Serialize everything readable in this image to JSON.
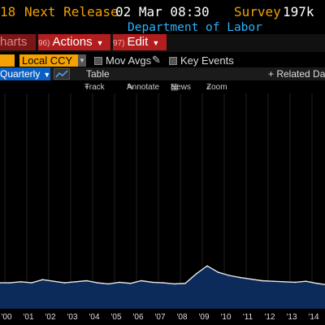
{
  "header": {
    "partial_value": "18",
    "next_release_label": "Next Release",
    "next_release_value": "02 Mar 08:30",
    "survey_label": "Survey",
    "survey_value": "197k",
    "source": "Department of Labor"
  },
  "menu": {
    "partial_tab": "harts",
    "actions": {
      "num": "96)",
      "label": "Actions"
    },
    "edit": {
      "num": "97)",
      "label": "Edit"
    }
  },
  "options": {
    "currency": "Local CCY",
    "mov_avgs": "Mov Avgs",
    "key_events": "Key Events"
  },
  "tabs": {
    "frequency": "Quarterly",
    "table": "Table",
    "related": "+ Related Da"
  },
  "tools": {
    "track": "Track",
    "annotate": "Annotate",
    "news": "News",
    "zoom": "Zoom"
  },
  "colors": {
    "background": "#000000",
    "area_fill": "#0c2a5a",
    "line": "#e8e8e8",
    "accent_red": "#b21d1d",
    "accent_amber": "#f5a200",
    "accent_blue": "#0a5fc4"
  },
  "chart_data": {
    "type": "area",
    "x_tick_labels": [
      "'00",
      "'01",
      "'02",
      "'03",
      "'04",
      "'05",
      "'06",
      "'07",
      "'08",
      "'09",
      "'10",
      "'11",
      "'12",
      "'13",
      "'14"
    ],
    "x": [
      2000,
      2000.5,
      2001,
      2001.5,
      2002,
      2002.5,
      2003,
      2003.5,
      2004,
      2004.5,
      2005,
      2005.5,
      2006,
      2006.5,
      2007,
      2007.5,
      2008,
      2008.5,
      2009,
      2009.5,
      2010,
      2010.5,
      2011,
      2011.5,
      2012,
      2012.5,
      2013,
      2013.5,
      2014,
      2014.5,
      2015
    ],
    "values": [
      0.6,
      0.8,
      0.6,
      1.2,
      0.9,
      0.6,
      0.8,
      1.0,
      0.6,
      0.4,
      0.7,
      0.5,
      1.0,
      0.7,
      0.6,
      0.4,
      0.5,
      2.3,
      3.8,
      2.6,
      2.0,
      1.6,
      1.3,
      1.0,
      0.9,
      0.8,
      0.7,
      0.9,
      0.5,
      0.2,
      0.4
    ]
  }
}
